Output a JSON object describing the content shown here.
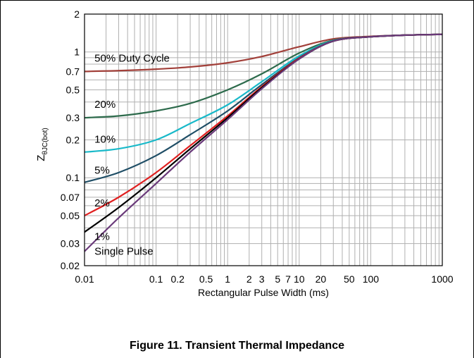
{
  "figure": {
    "caption": "Figure 11. Transient Thermal Impedance"
  },
  "chart_data": {
    "type": "line",
    "title": "",
    "xlabel": "Rectangular Pulse Width (ms)",
    "ylabel_main": "Z",
    "ylabel_sub": "θJC(bot)",
    "xscale": "log",
    "yscale": "log",
    "xlim": [
      0.01,
      1000
    ],
    "ylim": [
      0.02,
      2
    ],
    "grid": true,
    "x_ticks": [
      {
        "v": 0.01,
        "label": "0.01"
      },
      {
        "v": 0.1,
        "label": "0.1"
      },
      {
        "v": 0.2,
        "label": "0.2"
      },
      {
        "v": 0.5,
        "label": "0.5"
      },
      {
        "v": 1,
        "label": "1"
      },
      {
        "v": 2,
        "label": "2"
      },
      {
        "v": 3,
        "label": "3"
      },
      {
        "v": 5,
        "label": "5"
      },
      {
        "v": 7,
        "label": "7"
      },
      {
        "v": 10,
        "label": "10"
      },
      {
        "v": 20,
        "label": "20"
      },
      {
        "v": 50,
        "label": "50"
      },
      {
        "v": 100,
        "label": "100"
      },
      {
        "v": 1000,
        "label": "1000"
      }
    ],
    "y_ticks": [
      {
        "v": 0.02,
        "label": "0.02"
      },
      {
        "v": 0.03,
        "label": "0.03"
      },
      {
        "v": 0.05,
        "label": "0.05"
      },
      {
        "v": 0.07,
        "label": "0.07"
      },
      {
        "v": 0.1,
        "label": "0.1"
      },
      {
        "v": 0.2,
        "label": "0.2"
      },
      {
        "v": 0.3,
        "label": "0.3"
      },
      {
        "v": 0.5,
        "label": "0.5"
      },
      {
        "v": 0.7,
        "label": "0.7"
      },
      {
        "v": 1,
        "label": "1"
      },
      {
        "v": 2,
        "label": "2"
      }
    ],
    "series": [
      {
        "name": "50% Duty Cycle",
        "color": "#a2403a",
        "x": [
          0.01,
          0.03,
          0.1,
          0.3,
          1,
          3,
          10,
          30,
          100,
          300,
          1000
        ],
        "y": [
          0.7,
          0.71,
          0.73,
          0.76,
          0.82,
          0.92,
          1.1,
          1.27,
          1.33,
          1.36,
          1.38
        ]
      },
      {
        "name": "20%",
        "color": "#2d6b4c",
        "x": [
          0.01,
          0.03,
          0.1,
          0.3,
          1,
          3,
          10,
          30,
          100,
          300,
          1000
        ],
        "y": [
          0.3,
          0.31,
          0.34,
          0.39,
          0.5,
          0.67,
          0.98,
          1.24,
          1.32,
          1.36,
          1.38
        ]
      },
      {
        "name": "10%",
        "color": "#19b9c9",
        "x": [
          0.01,
          0.03,
          0.1,
          0.3,
          1,
          3,
          10,
          30,
          100,
          300,
          1000
        ],
        "y": [
          0.16,
          0.17,
          0.2,
          0.27,
          0.38,
          0.58,
          0.93,
          1.23,
          1.32,
          1.36,
          1.38
        ]
      },
      {
        "name": "5%",
        "color": "#1f4e66",
        "x": [
          0.01,
          0.03,
          0.1,
          0.3,
          1,
          3,
          10,
          30,
          100,
          300,
          1000
        ],
        "y": [
          0.092,
          0.11,
          0.15,
          0.22,
          0.34,
          0.55,
          0.9,
          1.22,
          1.32,
          1.36,
          1.38
        ]
      },
      {
        "name": "2%",
        "color": "#e02020",
        "x": [
          0.01,
          0.03,
          0.1,
          0.3,
          1,
          3,
          10,
          30,
          100,
          300,
          1000
        ],
        "y": [
          0.05,
          0.07,
          0.11,
          0.18,
          0.31,
          0.53,
          0.89,
          1.22,
          1.32,
          1.36,
          1.38
        ]
      },
      {
        "name": "1%",
        "color": "#000000",
        "x": [
          0.01,
          0.03,
          0.1,
          0.3,
          1,
          3,
          10,
          30,
          100,
          300,
          1000
        ],
        "y": [
          0.037,
          0.058,
          0.1,
          0.17,
          0.3,
          0.52,
          0.88,
          1.22,
          1.32,
          1.36,
          1.38
        ]
      },
      {
        "name": "Single Pulse",
        "color": "#6a3a7a",
        "x": [
          0.01,
          0.03,
          0.1,
          0.3,
          1,
          3,
          10,
          30,
          100,
          300,
          1000
        ],
        "y": [
          0.026,
          0.048,
          0.09,
          0.16,
          0.29,
          0.51,
          0.88,
          1.22,
          1.32,
          1.36,
          1.38
        ]
      }
    ],
    "annotations": [
      {
        "text": "50% Duty Cycle",
        "x": 0.0115,
        "y": 0.84
      },
      {
        "text": "20%",
        "x": 0.0115,
        "y": 0.36
      },
      {
        "text": "10%",
        "x": 0.0115,
        "y": 0.19
      },
      {
        "text": "5%",
        "x": 0.0115,
        "y": 0.108
      },
      {
        "text": "2%",
        "x": 0.0115,
        "y": 0.059
      },
      {
        "text": "1%",
        "x": 0.0115,
        "y": 0.032
      },
      {
        "text": "Single Pulse",
        "x": 0.0115,
        "y": 0.0245
      }
    ]
  }
}
